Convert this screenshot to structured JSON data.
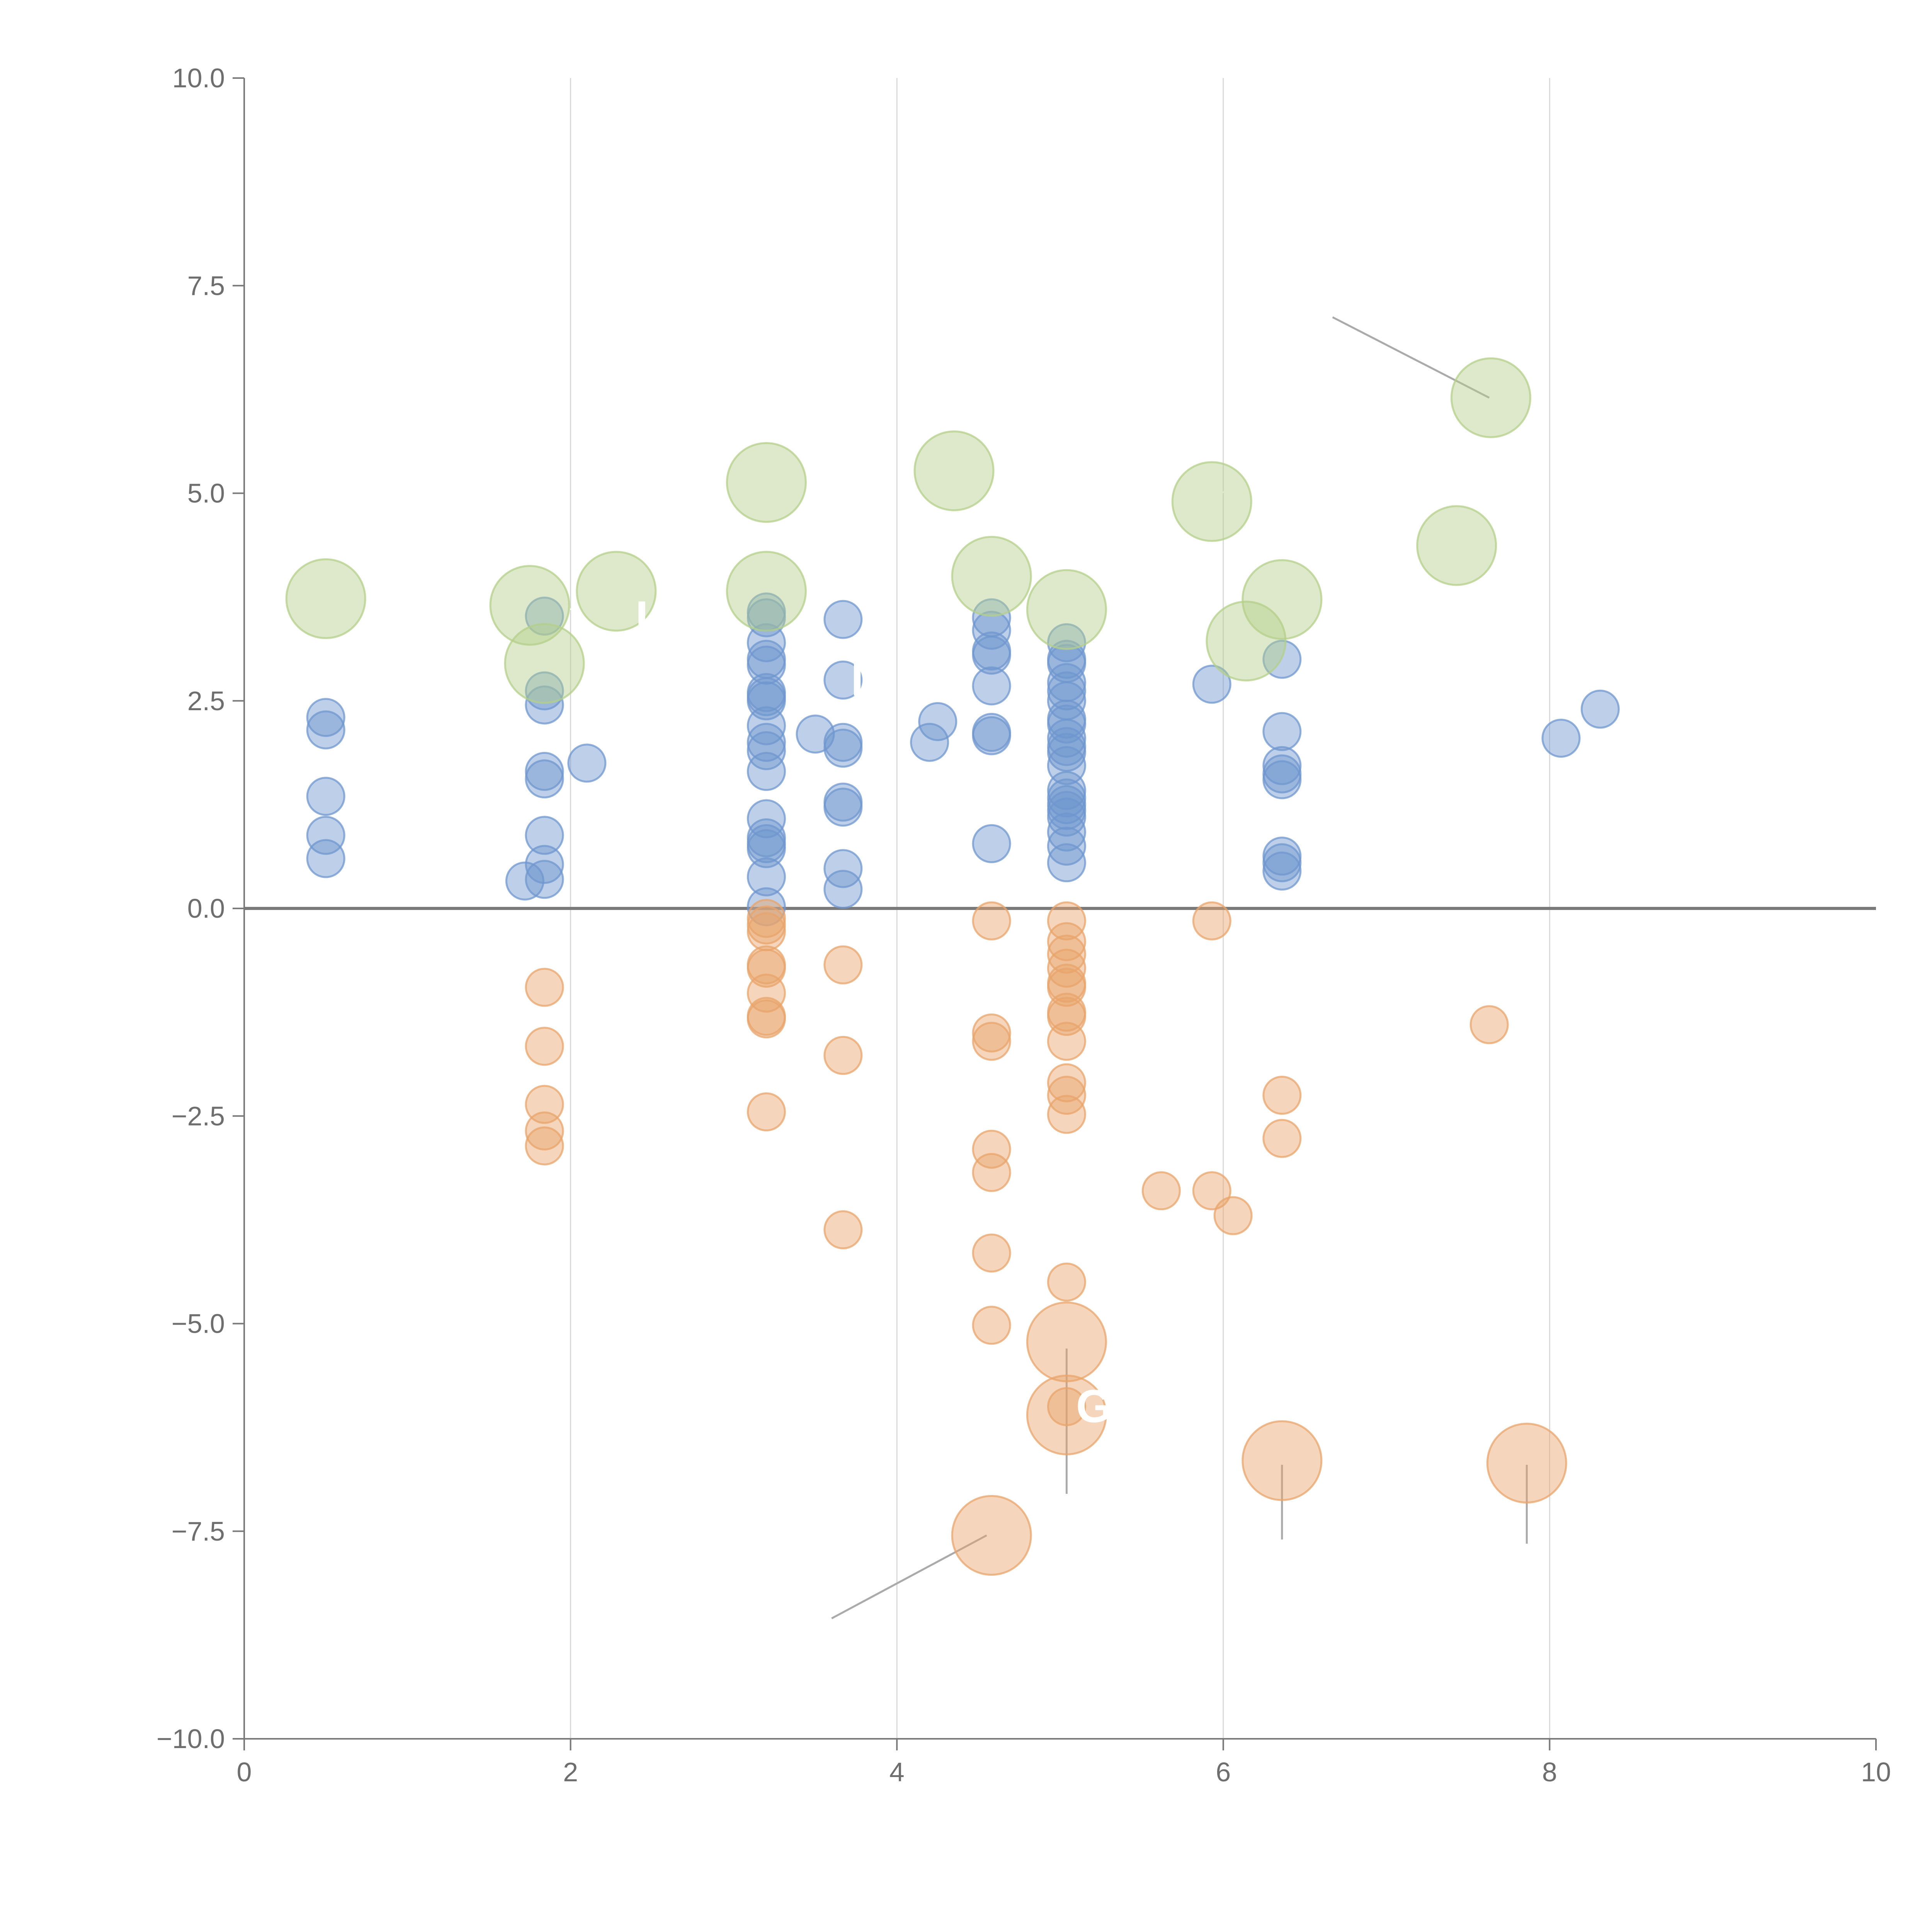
{
  "chart_data": {
    "type": "scatter",
    "title": "",
    "xlabel": "",
    "ylabel": "",
    "xlim": [
      0,
      10
    ],
    "ylim": [
      -10,
      10
    ],
    "grid": "vertical",
    "zero_line": true,
    "x_ticks": [
      0,
      2,
      4,
      6,
      8,
      10
    ],
    "x_tick_labels": [
      "0",
      "2",
      "4",
      "6",
      "8",
      "10"
    ],
    "y_ticks": [
      10,
      7.5,
      5,
      2.5,
      0,
      -2.5,
      -5,
      -7.5,
      -10
    ],
    "y_tick_labels": [
      "10.0",
      "7.5",
      "5.0",
      "2.5",
      "0.0",
      "−2.5",
      "−5.0",
      "−7.5",
      "−10.0"
    ],
    "colors": {
      "positive": "#6f97cf",
      "negative": "#e8a46b",
      "highlight": "#b4cf8a",
      "axis": "#7a7a7a",
      "grid": "#d9d9d9",
      "label": "#6e6e6e"
    },
    "series": [
      {
        "name": "positive",
        "color": "#6f97cf",
        "size": "small",
        "points": [
          [
            0.5,
            2.3
          ],
          [
            0.5,
            2.15
          ],
          [
            0.5,
            1.35
          ],
          [
            0.5,
            0.88
          ],
          [
            0.5,
            0.6
          ],
          [
            1.72,
            0.33
          ],
          [
            1.84,
            3.52
          ],
          [
            1.84,
            2.62
          ],
          [
            1.84,
            2.45
          ],
          [
            1.84,
            1.65
          ],
          [
            1.84,
            1.56
          ],
          [
            1.84,
            0.88
          ],
          [
            1.84,
            0.53
          ],
          [
            1.84,
            0.35
          ],
          [
            2.1,
            1.75
          ],
          [
            3.2,
            3.57
          ],
          [
            3.2,
            3.5
          ],
          [
            3.2,
            3.2
          ],
          [
            3.2,
            3.0
          ],
          [
            3.2,
            2.93
          ],
          [
            3.2,
            2.6
          ],
          [
            3.2,
            2.55
          ],
          [
            3.2,
            2.5
          ],
          [
            3.2,
            2.2
          ],
          [
            3.2,
            2.0
          ],
          [
            3.2,
            1.9
          ],
          [
            3.2,
            1.65
          ],
          [
            3.2,
            1.08
          ],
          [
            3.2,
            0.85
          ],
          [
            3.2,
            0.78
          ],
          [
            3.2,
            0.72
          ],
          [
            3.2,
            0.38
          ],
          [
            3.2,
            0.02
          ],
          [
            3.5,
            2.1
          ],
          [
            3.67,
            3.48
          ],
          [
            3.67,
            2.75
          ],
          [
            3.67,
            2.0
          ],
          [
            3.67,
            1.93
          ],
          [
            3.67,
            1.28
          ],
          [
            3.67,
            1.22
          ],
          [
            3.67,
            0.48
          ],
          [
            3.67,
            0.23
          ],
          [
            4.2,
            2.0
          ],
          [
            4.25,
            2.25
          ],
          [
            4.58,
            3.5
          ],
          [
            4.58,
            3.35
          ],
          [
            4.58,
            3.1
          ],
          [
            4.58,
            3.05
          ],
          [
            4.58,
            2.68
          ],
          [
            4.58,
            2.12
          ],
          [
            4.58,
            2.08
          ],
          [
            4.58,
            0.78
          ],
          [
            5.04,
            3.2
          ],
          [
            5.04,
            3.0
          ],
          [
            5.04,
            2.95
          ],
          [
            5.04,
            2.72
          ],
          [
            5.04,
            2.62
          ],
          [
            5.04,
            2.5
          ],
          [
            5.04,
            2.28
          ],
          [
            5.04,
            2.22
          ],
          [
            5.04,
            2.05
          ],
          [
            5.04,
            1.95
          ],
          [
            5.04,
            1.88
          ],
          [
            5.04,
            1.72
          ],
          [
            5.04,
            1.42
          ],
          [
            5.04,
            1.33
          ],
          [
            5.04,
            1.25
          ],
          [
            5.04,
            1.18
          ],
          [
            5.04,
            1.1
          ],
          [
            5.04,
            0.92
          ],
          [
            5.04,
            0.75
          ],
          [
            5.04,
            0.55
          ],
          [
            5.93,
            2.7
          ],
          [
            6.36,
            3.0
          ],
          [
            6.36,
            2.13
          ],
          [
            6.36,
            1.72
          ],
          [
            6.36,
            1.62
          ],
          [
            6.36,
            1.55
          ],
          [
            6.36,
            0.63
          ],
          [
            6.36,
            0.55
          ],
          [
            6.36,
            0.45
          ],
          [
            8.07,
            2.05
          ],
          [
            8.31,
            2.4
          ]
        ]
      },
      {
        "name": "negative",
        "color": "#e8a46b",
        "size": "small",
        "points": [
          [
            1.84,
            -0.95
          ],
          [
            1.84,
            -1.66
          ],
          [
            1.84,
            -2.36
          ],
          [
            1.84,
            -2.68
          ],
          [
            1.84,
            -2.86
          ],
          [
            3.2,
            -0.12
          ],
          [
            3.2,
            -0.2
          ],
          [
            3.2,
            -0.28
          ],
          [
            3.2,
            -0.68
          ],
          [
            3.2,
            -0.72
          ],
          [
            3.2,
            -1.02
          ],
          [
            3.2,
            -1.3
          ],
          [
            3.2,
            -1.33
          ],
          [
            3.2,
            -2.45
          ],
          [
            3.67,
            -0.68
          ],
          [
            3.67,
            -1.77
          ],
          [
            3.67,
            -3.87
          ],
          [
            4.58,
            -0.15
          ],
          [
            4.58,
            -1.5
          ],
          [
            4.58,
            -1.6
          ],
          [
            4.58,
            -2.9
          ],
          [
            4.58,
            -3.18
          ],
          [
            4.58,
            -4.15
          ],
          [
            4.58,
            -5.02
          ],
          [
            5.04,
            -0.15
          ],
          [
            5.04,
            -0.4
          ],
          [
            5.04,
            -0.55
          ],
          [
            5.04,
            -0.72
          ],
          [
            5.04,
            -0.9
          ],
          [
            5.04,
            -0.95
          ],
          [
            5.04,
            -1.25
          ],
          [
            5.04,
            -1.3
          ],
          [
            5.04,
            -1.6
          ],
          [
            5.04,
            -2.1
          ],
          [
            5.04,
            -2.25
          ],
          [
            5.04,
            -2.48
          ],
          [
            5.04,
            -4.5
          ],
          [
            5.04,
            -6.0
          ],
          [
            5.62,
            -3.4
          ],
          [
            5.93,
            -0.15
          ],
          [
            5.93,
            -3.4
          ],
          [
            6.06,
            -3.7
          ],
          [
            6.36,
            -2.25
          ],
          [
            6.36,
            -2.77
          ],
          [
            7.63,
            -1.4
          ]
        ]
      },
      {
        "name": "highlight-positive",
        "color": "#b4cf8a",
        "size": "large",
        "points": [
          [
            0.5,
            3.73
          ],
          [
            1.75,
            3.65
          ],
          [
            1.84,
            2.95
          ],
          [
            2.28,
            3.82
          ],
          [
            3.2,
            5.13
          ],
          [
            3.2,
            3.82
          ],
          [
            4.35,
            5.27
          ],
          [
            4.58,
            4.0
          ],
          [
            5.04,
            3.6
          ],
          [
            5.93,
            4.9
          ],
          [
            6.14,
            3.22
          ],
          [
            6.36,
            3.72
          ],
          [
            7.43,
            4.37
          ],
          [
            7.64,
            6.15
          ]
        ]
      },
      {
        "name": "highlight-negative",
        "color": "#e8a46b",
        "size": "large",
        "points": [
          [
            5.04,
            -5.22
          ],
          [
            5.04,
            -6.1
          ],
          [
            6.36,
            -6.65
          ],
          [
            7.86,
            -6.68
          ],
          [
            4.58,
            -7.55
          ]
        ]
      }
    ],
    "annotations": [
      {
        "text": "G",
        "x": 5.05,
        "y": -6.0
      },
      {
        "text": "D",
        "x": 3.67,
        "y": 2.75
      },
      {
        "text": "L",
        "x": 2.35,
        "y": 3.5
      }
    ]
  }
}
